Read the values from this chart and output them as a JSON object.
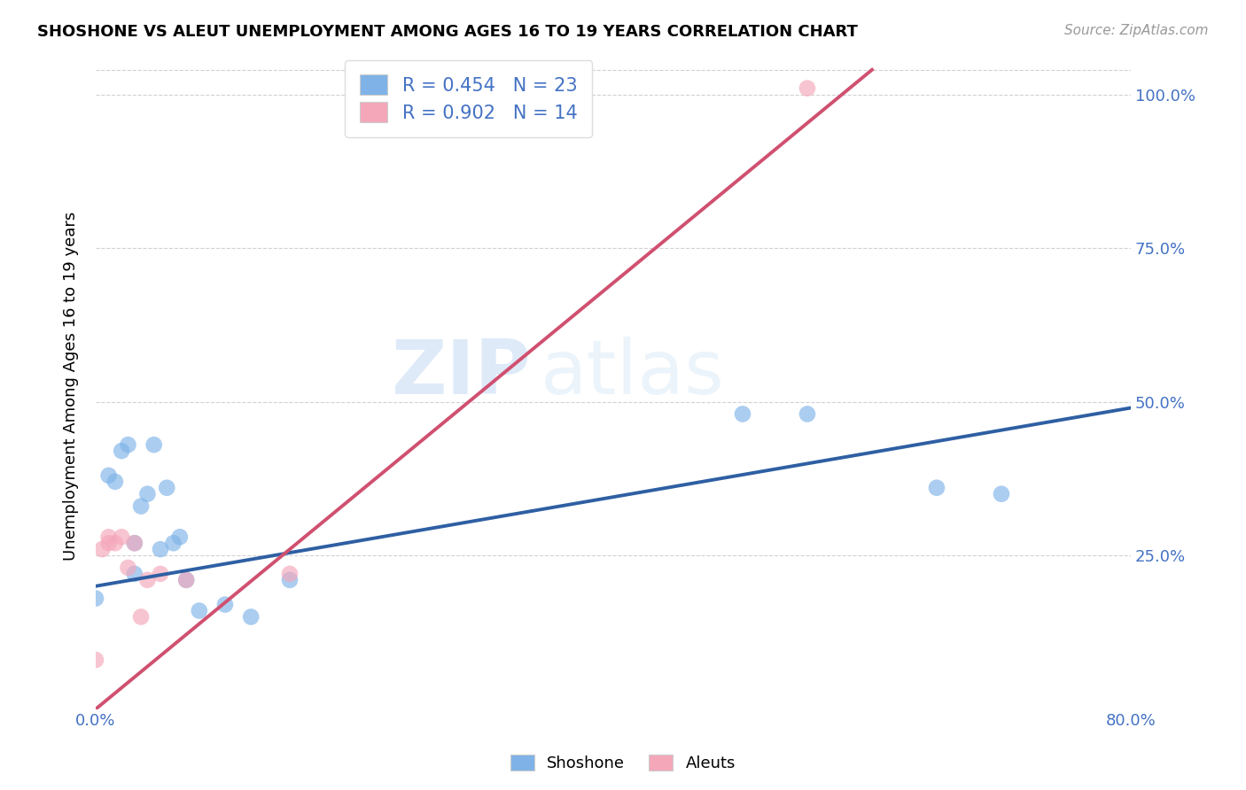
{
  "title": "SHOSHONE VS ALEUT UNEMPLOYMENT AMONG AGES 16 TO 19 YEARS CORRELATION CHART",
  "source": "Source: ZipAtlas.com",
  "ylabel": "Unemployment Among Ages 16 to 19 years",
  "shoshone_R": 0.454,
  "shoshone_N": 23,
  "aleut_R": 0.902,
  "aleut_N": 14,
  "shoshone_color": "#7fb3e8",
  "aleut_color": "#f4a7b9",
  "shoshone_line_color": "#2e5fa3",
  "aleut_line_color": "#d05070",
  "watermark_zip": "ZIP",
  "watermark_atlas": "atlas",
  "shoshone_x": [
    0.0,
    0.01,
    0.015,
    0.02,
    0.025,
    0.03,
    0.03,
    0.035,
    0.04,
    0.045,
    0.05,
    0.055,
    0.06,
    0.065,
    0.07,
    0.08,
    0.1,
    0.12,
    0.15,
    0.5,
    0.55,
    0.65,
    0.7
  ],
  "shoshone_y": [
    0.18,
    0.38,
    0.37,
    0.42,
    0.43,
    0.27,
    0.22,
    0.33,
    0.35,
    0.43,
    0.26,
    0.36,
    0.27,
    0.28,
    0.21,
    0.16,
    0.17,
    0.15,
    0.21,
    0.48,
    0.48,
    0.36,
    0.35
  ],
  "aleut_x": [
    0.0,
    0.005,
    0.01,
    0.01,
    0.015,
    0.02,
    0.025,
    0.03,
    0.035,
    0.04,
    0.05,
    0.07,
    0.15,
    0.55
  ],
  "aleut_y": [
    0.08,
    0.26,
    0.27,
    0.28,
    0.27,
    0.28,
    0.23,
    0.27,
    0.15,
    0.21,
    0.22,
    0.21,
    0.22,
    1.01
  ],
  "xlim": [
    0.0,
    0.8
  ],
  "ylim": [
    0.0,
    1.05
  ],
  "shoshone_trend_x": [
    0.0,
    0.8
  ],
  "shoshone_trend_y": [
    0.2,
    0.49
  ],
  "aleut_trend_x": [
    0.0,
    0.6
  ],
  "aleut_trend_y": [
    0.0,
    1.04
  ]
}
